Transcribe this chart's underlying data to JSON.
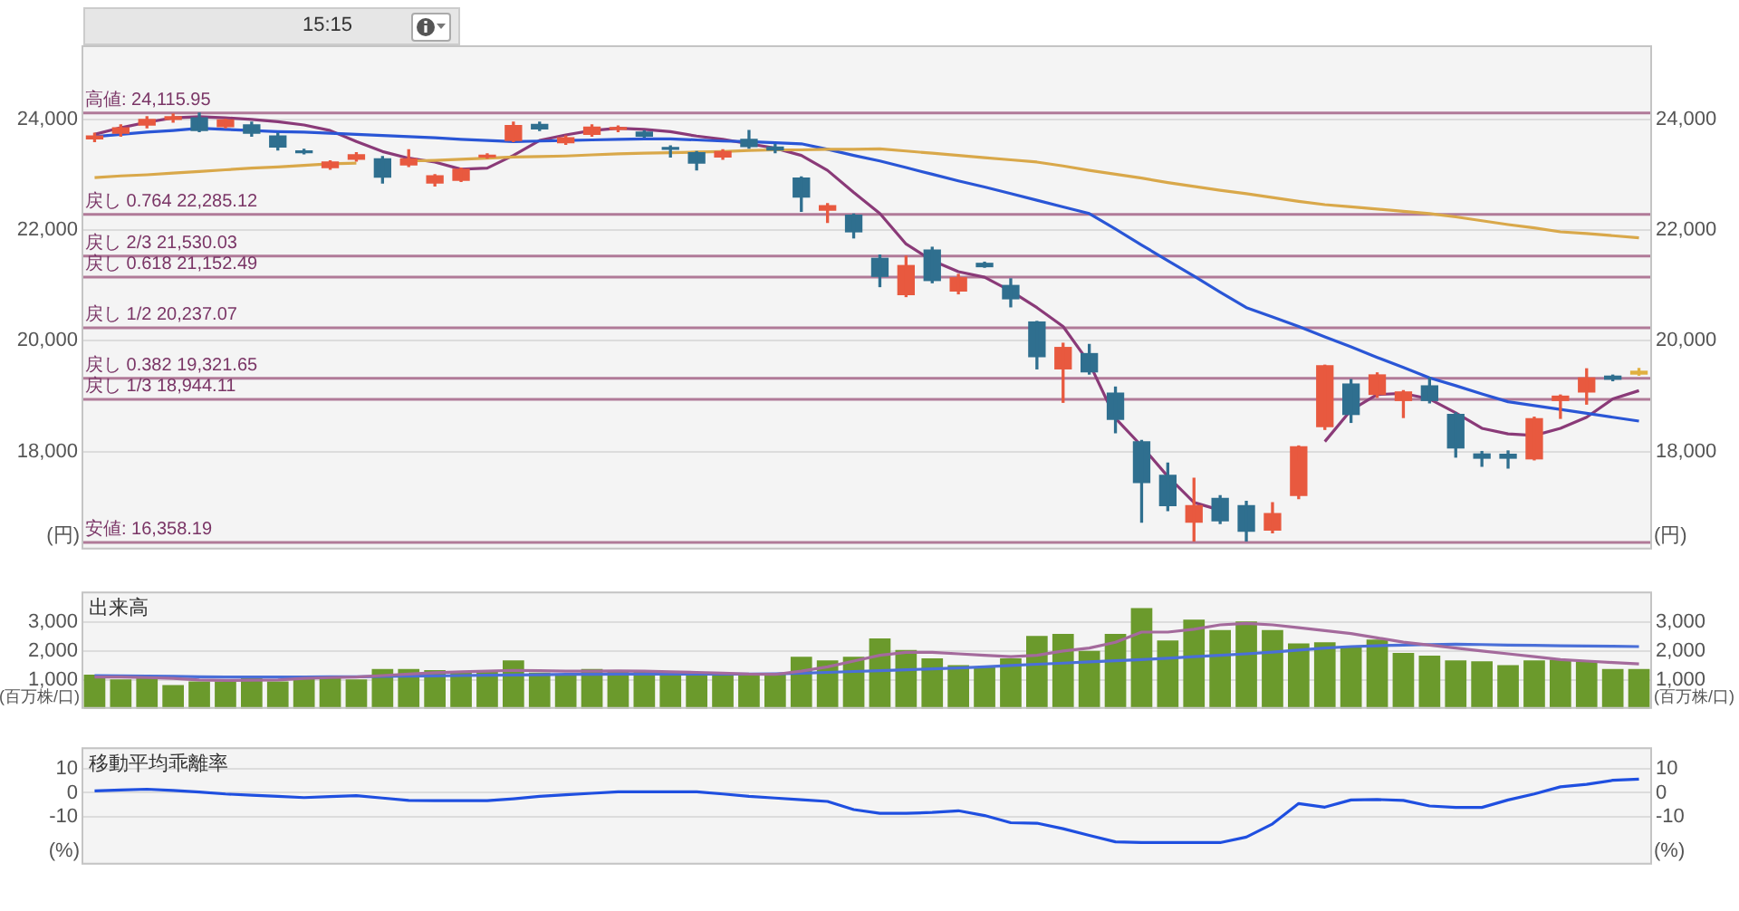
{
  "chart_data": [
    {
      "type": "candlestick",
      "categories": [
        null,
        null,
        null,
        null,
        null,
        null,
        null,
        null,
        null,
        null,
        null,
        null,
        null,
        null,
        null,
        null,
        null,
        null,
        null,
        null,
        null,
        null,
        null,
        null,
        null,
        null,
        null,
        null,
        null,
        null,
        null,
        null,
        null,
        null,
        null,
        null,
        null,
        null,
        null,
        null,
        null,
        null,
        null,
        null,
        null,
        null,
        null,
        null,
        null,
        null,
        null,
        null,
        null,
        null,
        null,
        null,
        null,
        null,
        null,
        null
      ],
      "ohlc": [
        [
          23650,
          23750,
          23600,
          23700
        ],
        [
          23750,
          23900,
          23700,
          23850
        ],
        [
          23900,
          24050,
          23850,
          24000
        ],
        [
          24000,
          24100,
          23950,
          24050
        ],
        [
          24030,
          24116,
          23780,
          23800
        ],
        [
          23870,
          24000,
          23850,
          23990
        ],
        [
          23900,
          23950,
          23700,
          23750
        ],
        [
          23700,
          23750,
          23450,
          23500
        ],
        [
          23430,
          23460,
          23380,
          23400
        ],
        [
          23130,
          23250,
          23100,
          23230
        ],
        [
          23280,
          23400,
          23250,
          23360
        ],
        [
          23290,
          23330,
          22850,
          22960
        ],
        [
          23180,
          23450,
          23150,
          23290
        ],
        [
          22850,
          23000,
          22800,
          22980
        ],
        [
          22900,
          23120,
          22880,
          23100
        ],
        [
          23320,
          23380,
          23300,
          23350
        ],
        [
          23620,
          23950,
          23600,
          23890
        ],
        [
          23910,
          23950,
          23800,
          23830
        ],
        [
          23580,
          23700,
          23550,
          23670
        ],
        [
          23730,
          23900,
          23700,
          23860
        ],
        [
          23820,
          23880,
          23780,
          23850
        ],
        [
          23770,
          23790,
          23680,
          23700
        ],
        [
          23480,
          23520,
          23320,
          23460
        ],
        [
          23400,
          23420,
          23090,
          23210
        ],
        [
          23320,
          23450,
          23280,
          23420
        ],
        [
          23640,
          23800,
          23480,
          23510
        ],
        [
          23500,
          23550,
          23400,
          23450
        ],
        [
          22940,
          22960,
          22340,
          22600
        ],
        [
          22360,
          22480,
          22140,
          22440
        ],
        [
          22270,
          22290,
          21860,
          21970
        ],
        [
          21490,
          21550,
          20980,
          21165
        ],
        [
          20835,
          21530,
          20800,
          21360
        ],
        [
          21640,
          21690,
          21050,
          21090
        ],
        [
          20900,
          21200,
          20850,
          21140
        ],
        [
          21400,
          21420,
          21330,
          21340
        ],
        [
          21000,
          21120,
          20615,
          20760
        ],
        [
          20340,
          20350,
          19494,
          19714
        ],
        [
          19494,
          19956,
          18890,
          19880
        ],
        [
          19769,
          19934,
          19400,
          19440
        ],
        [
          19055,
          19164,
          18340,
          18582
        ],
        [
          18175,
          18200,
          16725,
          17440
        ],
        [
          17571,
          17790,
          16933,
          17022
        ],
        [
          16725,
          17516,
          16384,
          17022
        ],
        [
          17153,
          17200,
          16700,
          16747
        ],
        [
          17022,
          17100,
          16384,
          16560
        ],
        [
          16582,
          17076,
          16530,
          16880
        ],
        [
          17208,
          18100,
          17150,
          18087
        ],
        [
          18450,
          19560,
          18400,
          19549
        ],
        [
          19219,
          19300,
          18527,
          18670
        ],
        [
          19032,
          19420,
          18980,
          19384
        ],
        [
          18923,
          19100,
          18615,
          19076
        ],
        [
          19186,
          19330,
          18880,
          18923
        ],
        [
          18670,
          18700,
          17900,
          18065
        ],
        [
          17956,
          18000,
          17736,
          17880
        ],
        [
          17950,
          18010,
          17700,
          17880
        ],
        [
          17868,
          18620,
          17850,
          18593
        ],
        [
          18923,
          19020,
          18600,
          19000
        ],
        [
          19076,
          19494,
          18857,
          19329
        ],
        [
          19362,
          19380,
          19280,
          19307
        ],
        [
          19400,
          19500,
          19380,
          19450
        ]
      ],
      "colors": [
        "#e8593f",
        "#e8593f",
        "#e8593f",
        "#e8593f",
        "#2f6f8f",
        "#e8593f",
        "#2f6f8f",
        "#2f6f8f",
        "#2f6f8f",
        "#e8593f",
        "#e8593f",
        "#2f6f8f",
        "#e8593f",
        "#e8593f",
        "#e8593f",
        "#e8593f",
        "#e8593f",
        "#2f6f8f",
        "#e8593f",
        "#e8593f",
        "#e8593f",
        "#2f6f8f",
        "#2f6f8f",
        "#2f6f8f",
        "#e8593f",
        "#2f6f8f",
        "#2f6f8f",
        "#2f6f8f",
        "#e8593f",
        "#2f6f8f",
        "#2f6f8f",
        "#e8593f",
        "#2f6f8f",
        "#e8593f",
        "#2f6f8f",
        "#2f6f8f",
        "#2f6f8f",
        "#e8593f",
        "#2f6f8f",
        "#2f6f8f",
        "#2f6f8f",
        "#2f6f8f",
        "#e8593f",
        "#2f6f8f",
        "#2f6f8f",
        "#e8593f",
        "#e8593f",
        "#e8593f",
        "#2f6f8f",
        "#e8593f",
        "#e8593f",
        "#2f6f8f",
        "#2f6f8f",
        "#2f6f8f",
        "#2f6f8f",
        "#e8593f",
        "#e8593f",
        "#e8593f",
        "#2f6f8f",
        "#e0b040"
      ],
      "series": [
        {
          "type": "line",
          "color": "#d9a84a",
          "values": [
            22950,
            22980,
            23000,
            23030,
            23060,
            23090,
            23120,
            23140,
            23170,
            23200,
            23210,
            null,
            23250,
            23260,
            23280,
            23300,
            23320,
            23330,
            23340,
            23360,
            23380,
            23390,
            23400,
            23410,
            23420,
            23440,
            23450,
            23450,
            23460,
            23460,
            23470,
            23430,
            23390,
            23350,
            23310,
            23270,
            23230,
            23160,
            23080,
            23010,
            22940,
            22860,
            22790,
            22720,
            22660,
            22590,
            22520,
            22460,
            22420,
            22380,
            22340,
            22300,
            22240,
            22170,
            22100,
            22040,
            21970,
            21940,
            21900,
            21860
          ]
        },
        {
          "type": "line",
          "color": "#2a56d6",
          "values": [
            23690,
            23730,
            23770,
            23800,
            23840,
            23820,
            23800,
            23780,
            23770,
            23750,
            23730,
            23710,
            23690,
            23670,
            23640,
            23620,
            23600,
            23610,
            23620,
            23630,
            23640,
            23650,
            23650,
            23630,
            23610,
            23600,
            23580,
            23560,
            23460,
            23350,
            23250,
            23130,
            23010,
            22890,
            22780,
            22660,
            22540,
            22420,
            22300,
            22020,
            21730,
            21450,
            21170,
            20880,
            20600,
            20430,
            20260,
            20070,
            19890,
            19700,
            19520,
            19330,
            19190,
            19040,
            18900,
            18830,
            18760,
            18690,
            18620,
            18550
          ]
        },
        {
          "type": "line",
          "color": "#8a3a78",
          "values": [
            23730,
            23850,
            23950,
            24030,
            24050,
            24030,
            24000,
            23960,
            23900,
            23800,
            23600,
            23420,
            23300,
            23230,
            23100,
            23120,
            23350,
            23620,
            23720,
            23800,
            23840,
            23820,
            23780,
            23700,
            23640,
            23560,
            23480,
            23350,
            23080,
            22680,
            22300,
            21750,
            21450,
            21250,
            21150,
            20900,
            20600,
            20260,
            19600,
            18600,
            18100,
            17550,
            17080,
            16940,
            null,
            null,
            null,
            18180,
            18750,
            19030,
            19050,
            18950,
            18700,
            18420,
            18320,
            18290,
            18420,
            18620,
            18950,
            19100
          ]
        }
      ],
      "ylim": [
        16230,
        25340
      ],
      "yticks": [
        {
          "value": 18000,
          "label": "18,000"
        },
        {
          "value": 20000,
          "label": "20,000"
        },
        {
          "value": 22000,
          "label": "22,000"
        },
        {
          "value": 24000,
          "label": "24,000"
        }
      ],
      "y2lim": [
        16230,
        25340
      ],
      "y2ticks": [
        {
          "value": 18000,
          "label": "18,000"
        },
        {
          "value": 20000,
          "label": "20,000"
        },
        {
          "value": 22000,
          "label": "22,000"
        },
        {
          "value": 24000,
          "label": "24,000"
        }
      ],
      "ylabel": "(円)",
      "y2label": "(円)",
      "ref_lines": [
        {
          "axis": "y",
          "value": 24115.95,
          "label": "高値: 24,115.95",
          "color": "#b07a98"
        },
        {
          "axis": "y",
          "value": 22285.12,
          "label": "戻し 0.764 22,285.12",
          "color": "#b07a98"
        },
        {
          "axis": "y",
          "value": 21530.03,
          "label": "戻し 2/3 21,530.03",
          "color": "#b07a98"
        },
        {
          "axis": "y",
          "value": 21152.49,
          "label": "戻し 0.618 21,152.49",
          "color": "#b07a98"
        },
        {
          "axis": "y",
          "value": 20237.07,
          "label": "戻し 1/2 20,237.07",
          "color": "#b07a98"
        },
        {
          "axis": "y",
          "value": 19321.65,
          "label": "戻し 0.382 19,321.65",
          "color": "#b07a98"
        },
        {
          "axis": "y",
          "value": 18944.11,
          "label": "戻し 1/3 18,944.11",
          "color": "#b07a98"
        },
        {
          "axis": "y",
          "value": 16358.19,
          "label": "安値: 16,358.19",
          "color": "#b07a98"
        }
      ],
      "annotations": [
        "15:15"
      ],
      "grid": "y",
      "legend": false,
      "tick_labels": "y",
      "marker": "none"
    },
    {
      "type": "bar",
      "title": "出来高",
      "categories": [
        null,
        null,
        null,
        null,
        null,
        null,
        null,
        null,
        null,
        null,
        null,
        null,
        null,
        null,
        null,
        null,
        null,
        null,
        null,
        null,
        null,
        null,
        null,
        null,
        null,
        null,
        null,
        null,
        null,
        null,
        null,
        null,
        null,
        null,
        null,
        null,
        null,
        null,
        null,
        null,
        null,
        null,
        null,
        null,
        null,
        null,
        null,
        null,
        null,
        null,
        null,
        null,
        null,
        null,
        null,
        null,
        null,
        null,
        null,
        null
      ],
      "series": [
        {
          "type": "bar",
          "color": "#6b9a2c",
          "values": [
            1180,
            1020,
            1080,
            820,
            950,
            950,
            1080,
            950,
            1150,
            1150,
            1020,
            1380,
            1380,
            1340,
            1280,
            1340,
            1670,
            1250,
            1150,
            1380,
            1280,
            1340,
            1280,
            1250,
            1150,
            1180,
            1180,
            1800,
            1670,
            1800,
            2430,
            2030,
            1740,
            1510,
            1440,
            1740,
            2520,
            2590,
            2000,
            2590,
            3480,
            2360,
            3080,
            2720,
            3020,
            2720,
            2260,
            2300,
            2130,
            2390,
            1930,
            1840,
            1670,
            1640,
            1510,
            1670,
            1700,
            1640,
            1380,
            1380
          ]
        },
        {
          "type": "line",
          "color": "#a46a9c",
          "values": [
            1100,
            1100,
            1080,
            1050,
            1000,
            980,
            990,
            1000,
            1050,
            1080,
            1100,
            1150,
            1200,
            1250,
            1280,
            1300,
            1330,
            1320,
            1300,
            1300,
            1310,
            1300,
            1280,
            1260,
            1230,
            1200,
            1190,
            1300,
            1450,
            1650,
            1850,
            1950,
            1950,
            1900,
            1850,
            1800,
            1850,
            2000,
            2100,
            2300,
            2650,
            2650,
            2750,
            2900,
            2950,
            2900,
            2800,
            2700,
            2600,
            2450,
            2300,
            2200,
            2100,
            2000,
            1900,
            1800,
            1700,
            1650,
            1600,
            1550
          ]
        },
        {
          "type": "line",
          "color": "#4a6fd8",
          "values": [
            1150,
            1140,
            1130,
            1120,
            1110,
            1100,
            1100,
            1100,
            1100,
            1110,
            1110,
            1120,
            1130,
            1140,
            1150,
            1160,
            1170,
            1180,
            1190,
            1190,
            1200,
            1200,
            1200,
            1200,
            1200,
            1200,
            1210,
            1230,
            1260,
            1290,
            1320,
            1350,
            1380,
            1410,
            1450,
            1500,
            1540,
            1580,
            1620,
            1660,
            1700,
            1750,
            1800,
            1850,
            1900,
            1960,
            2030,
            2100,
            2150,
            2180,
            2200,
            2220,
            2230,
            2220,
            2200,
            2190,
            2180,
            2170,
            2160,
            2150
          ]
        }
      ],
      "ylim": [
        0,
        4050
      ],
      "yticks": [
        {
          "value": 1000,
          "label": "1,000"
        },
        {
          "value": 2000,
          "label": "2,000"
        },
        {
          "value": 3000,
          "label": "3,000"
        }
      ],
      "y2lim": [
        0,
        4050
      ],
      "y2ticks": [
        {
          "value": 1000,
          "label": "1,000"
        },
        {
          "value": 2000,
          "label": "2,000"
        },
        {
          "value": 3000,
          "label": "3,000"
        }
      ],
      "ylabel": "(百万株/口)",
      "y2label": "(百万株/口)",
      "grid": "y",
      "legend": false,
      "tick_labels": "y",
      "marker": "none"
    },
    {
      "type": "line",
      "title": "移動平均乖離率",
      "categories": [
        null,
        null,
        null,
        null,
        null,
        null,
        null,
        null,
        null,
        null,
        null,
        null,
        null,
        null,
        null,
        null,
        null,
        null,
        null,
        null,
        null,
        null,
        null,
        null,
        null,
        null,
        null,
        null,
        null,
        null,
        null,
        null,
        null,
        null,
        null,
        null,
        null,
        null,
        null,
        null,
        null,
        null,
        null,
        null,
        null,
        null,
        null,
        null,
        null,
        null,
        null,
        null,
        null,
        null,
        null,
        null,
        null,
        null,
        null,
        null
      ],
      "series": [
        {
          "color": "#1f4fe0",
          "values": [
            0.8,
            1.2,
            1.5,
            1,
            0.3,
            -0.5,
            -1,
            -1.5,
            -2,
            -1.6,
            -1.2,
            -2.2,
            -3.2,
            -3.3,
            -3.3,
            -3.3,
            -2.5,
            -1.5,
            -0.8,
            -0.2,
            0.4,
            0.4,
            0.4,
            0.4,
            -0.5,
            -1.5,
            -2.2,
            -2.9,
            -3.6,
            -7,
            -8.6,
            -8.6,
            -8.2,
            -7.5,
            -9.5,
            -12.5,
            -12.7,
            -15,
            -17.8,
            -20.5,
            -20.8,
            -20.8,
            -20.8,
            -20.8,
            -18.5,
            -13,
            -4.5,
            -6,
            -3,
            -2.8,
            -3.2,
            -5.5,
            -6.1,
            -6.1,
            -3,
            -0.5,
            2.5,
            3.5,
            5.2,
            5.7
          ]
        }
      ],
      "ylim": [
        -30,
        19
      ],
      "yticks": [
        -10,
        0,
        10
      ],
      "y2lim": [
        -30,
        19
      ],
      "y2ticks": [
        -10,
        0,
        10
      ],
      "ylabel": "(%)",
      "y2label": "(%)",
      "grid": "y",
      "legend": false,
      "tick_labels": "y",
      "marker": "none"
    }
  ]
}
